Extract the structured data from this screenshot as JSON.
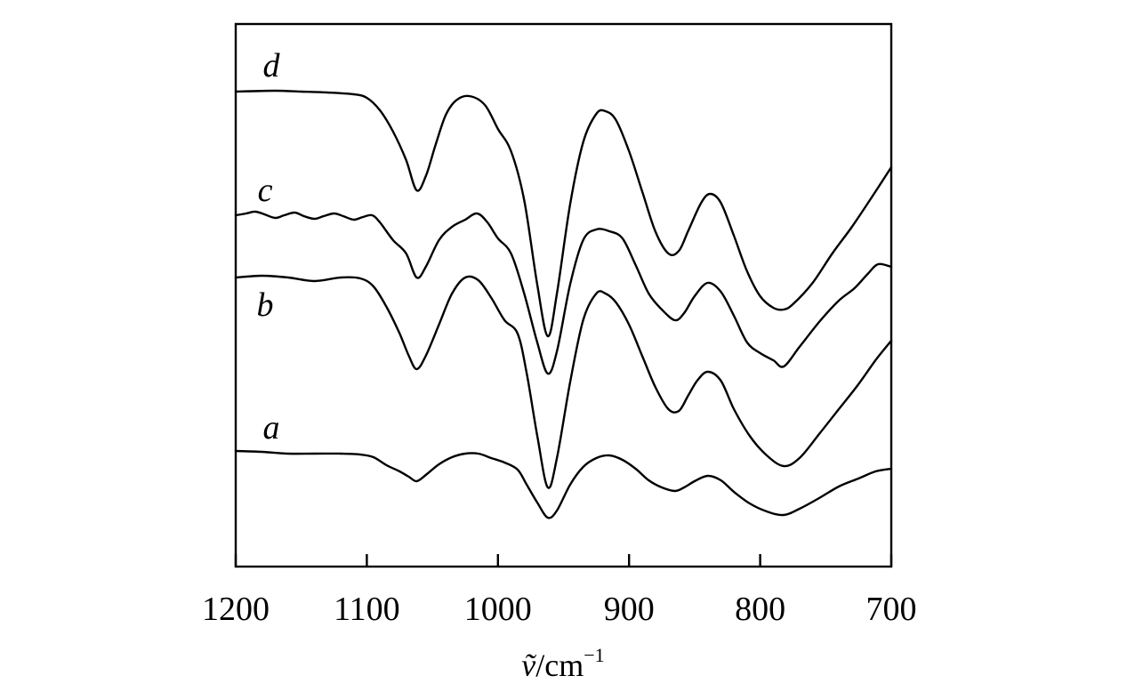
{
  "chart_data": {
    "type": "line",
    "title": "",
    "xlabel_parts": {
      "symbol": "ṽ",
      "unit": "/cm",
      "exponent": "−1"
    },
    "xlabel": "ṽ/cm−1",
    "ylabel": "",
    "xlim": [
      1200,
      700
    ],
    "x_reversed": true,
    "y_axis_ticks": false,
    "grid": false,
    "legend": "none",
    "x_ticks": [
      1200,
      1100,
      1000,
      900,
      800,
      700
    ],
    "x_tick_labels": [
      "1200",
      "1100",
      "1000",
      "900",
      "800",
      "700"
    ],
    "series_labels": [
      "d",
      "c",
      "b",
      "a"
    ],
    "series": [
      {
        "name": "d",
        "points": [
          [
            1200,
            103
          ],
          [
            1170,
            102
          ],
          [
            1150,
            103
          ],
          [
            1130,
            104
          ],
          [
            1110,
            106
          ],
          [
            1100,
            110
          ],
          [
            1090,
            124
          ],
          [
            1080,
            148
          ],
          [
            1070,
            180
          ],
          [
            1062,
            214
          ],
          [
            1055,
            198
          ],
          [
            1048,
            165
          ],
          [
            1040,
            130
          ],
          [
            1032,
            113
          ],
          [
            1022,
            108
          ],
          [
            1010,
            118
          ],
          [
            1000,
            145
          ],
          [
            990,
            170
          ],
          [
            980,
            225
          ],
          [
            970,
            320
          ],
          [
            962,
            378
          ],
          [
            955,
            330
          ],
          [
            945,
            230
          ],
          [
            935,
            160
          ],
          [
            925,
            128
          ],
          [
            918,
            125
          ],
          [
            910,
            135
          ],
          [
            900,
            170
          ],
          [
            890,
            215
          ],
          [
            880,
            260
          ],
          [
            870,
            285
          ],
          [
            862,
            282
          ],
          [
            855,
            260
          ],
          [
            845,
            228
          ],
          [
            838,
            218
          ],
          [
            830,
            228
          ],
          [
            820,
            265
          ],
          [
            810,
            305
          ],
          [
            800,
            333
          ],
          [
            790,
            346
          ],
          [
            782,
            348
          ],
          [
            775,
            342
          ],
          [
            760,
            318
          ],
          [
            745,
            285
          ],
          [
            730,
            255
          ],
          [
            715,
            222
          ],
          [
            700,
            188
          ]
        ]
      },
      {
        "name": "c",
        "points": [
          [
            1200,
            242
          ],
          [
            1192,
            240
          ],
          [
            1185,
            238
          ],
          [
            1178,
            241
          ],
          [
            1170,
            245
          ],
          [
            1163,
            242
          ],
          [
            1155,
            239
          ],
          [
            1148,
            243
          ],
          [
            1140,
            246
          ],
          [
            1133,
            243
          ],
          [
            1125,
            240
          ],
          [
            1118,
            243
          ],
          [
            1110,
            247
          ],
          [
            1103,
            244
          ],
          [
            1096,
            242
          ],
          [
            1090,
            250
          ],
          [
            1080,
            270
          ],
          [
            1070,
            285
          ],
          [
            1062,
            312
          ],
          [
            1055,
            300
          ],
          [
            1045,
            270
          ],
          [
            1035,
            255
          ],
          [
            1025,
            247
          ],
          [
            1016,
            240
          ],
          [
            1008,
            250
          ],
          [
            1000,
            268
          ],
          [
            990,
            285
          ],
          [
            980,
            330
          ],
          [
            970,
            385
          ],
          [
            962,
            420
          ],
          [
            955,
            395
          ],
          [
            945,
            320
          ],
          [
            935,
            270
          ],
          [
            925,
            258
          ],
          [
            915,
            260
          ],
          [
            905,
            268
          ],
          [
            895,
            298
          ],
          [
            885,
            330
          ],
          [
            875,
            348
          ],
          [
            865,
            360
          ],
          [
            858,
            352
          ],
          [
            850,
            333
          ],
          [
            840,
            318
          ],
          [
            830,
            328
          ],
          [
            820,
            355
          ],
          [
            810,
            385
          ],
          [
            800,
            397
          ],
          [
            790,
            405
          ],
          [
            782,
            412
          ],
          [
            770,
            390
          ],
          [
            755,
            362
          ],
          [
            740,
            338
          ],
          [
            728,
            324
          ],
          [
            718,
            308
          ],
          [
            710,
            297
          ],
          [
            700,
            300
          ]
        ]
      },
      {
        "name": "b",
        "points": [
          [
            1200,
            312
          ],
          [
            1180,
            310
          ],
          [
            1160,
            312
          ],
          [
            1140,
            316
          ],
          [
            1120,
            312
          ],
          [
            1105,
            313
          ],
          [
            1095,
            322
          ],
          [
            1085,
            345
          ],
          [
            1075,
            375
          ],
          [
            1068,
            400
          ],
          [
            1062,
            415
          ],
          [
            1055,
            400
          ],
          [
            1045,
            365
          ],
          [
            1035,
            330
          ],
          [
            1025,
            312
          ],
          [
            1015,
            315
          ],
          [
            1005,
            335
          ],
          [
            995,
            360
          ],
          [
            985,
            375
          ],
          [
            978,
            420
          ],
          [
            970,
            490
          ],
          [
            962,
            548
          ],
          [
            955,
            515
          ],
          [
            945,
            430
          ],
          [
            935,
            360
          ],
          [
            925,
            330
          ],
          [
            918,
            330
          ],
          [
            910,
            340
          ],
          [
            900,
            365
          ],
          [
            890,
            400
          ],
          [
            880,
            435
          ],
          [
            870,
            460
          ],
          [
            862,
            462
          ],
          [
            855,
            445
          ],
          [
            848,
            428
          ],
          [
            840,
            418
          ],
          [
            830,
            428
          ],
          [
            820,
            460
          ],
          [
            808,
            490
          ],
          [
            795,
            512
          ],
          [
            782,
            524
          ],
          [
            770,
            515
          ],
          [
            755,
            488
          ],
          [
            740,
            460
          ],
          [
            725,
            432
          ],
          [
            712,
            405
          ],
          [
            700,
            383
          ]
        ]
      },
      {
        "name": "a",
        "points": [
          [
            1200,
            507
          ],
          [
            1180,
            508
          ],
          [
            1160,
            510
          ],
          [
            1140,
            510
          ],
          [
            1120,
            510
          ],
          [
            1105,
            511
          ],
          [
            1095,
            514
          ],
          [
            1085,
            523
          ],
          [
            1075,
            530
          ],
          [
            1068,
            536
          ],
          [
            1062,
            541
          ],
          [
            1055,
            534
          ],
          [
            1045,
            522
          ],
          [
            1035,
            514
          ],
          [
            1025,
            510
          ],
          [
            1015,
            510
          ],
          [
            1005,
            515
          ],
          [
            995,
            520
          ],
          [
            985,
            528
          ],
          [
            978,
            545
          ],
          [
            970,
            565
          ],
          [
            962,
            582
          ],
          [
            955,
            574
          ],
          [
            945,
            545
          ],
          [
            935,
            525
          ],
          [
            925,
            515
          ],
          [
            915,
            512
          ],
          [
            905,
            517
          ],
          [
            895,
            527
          ],
          [
            885,
            540
          ],
          [
            875,
            548
          ],
          [
            865,
            552
          ],
          [
            858,
            548
          ],
          [
            850,
            541
          ],
          [
            840,
            535
          ],
          [
            830,
            540
          ],
          [
            820,
            553
          ],
          [
            808,
            566
          ],
          [
            795,
            575
          ],
          [
            782,
            579
          ],
          [
            770,
            572
          ],
          [
            755,
            560
          ],
          [
            740,
            547
          ],
          [
            725,
            538
          ],
          [
            712,
            530
          ],
          [
            700,
            527
          ]
        ]
      }
    ]
  }
}
